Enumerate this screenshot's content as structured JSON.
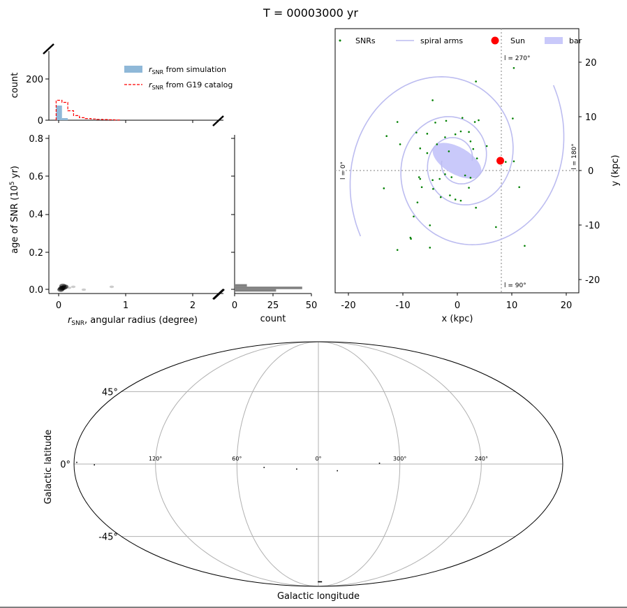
{
  "title": "T = 00003000 yr",
  "hist_top": {
    "ylabel": "count",
    "yticks": [
      0,
      200
    ],
    "ylim": [
      0,
      330
    ],
    "xlim": [
      -0.1,
      2.3
    ],
    "legend": {
      "sim_prefix": "r",
      "sim_sub": "SNR",
      "sim_suffix": " from simulation",
      "cat_prefix": "r",
      "cat_sub": "SNR",
      "cat_suffix": " from G19 catalog"
    },
    "sim_bins": [
      {
        "x0": 0.0,
        "x1": 0.08,
        "count": 70
      },
      {
        "x0": 0.08,
        "x1": 0.16,
        "count": 10
      }
    ],
    "catalog_step": [
      {
        "x0": 0.0,
        "x1": 0.08,
        "count": 95
      },
      {
        "x0": 0.08,
        "x1": 0.16,
        "count": 85
      },
      {
        "x0": 0.16,
        "x1": 0.24,
        "count": 45
      },
      {
        "x0": 0.24,
        "x1": 0.32,
        "count": 22
      },
      {
        "x0": 0.32,
        "x1": 0.4,
        "count": 12
      },
      {
        "x0": 0.4,
        "x1": 0.48,
        "count": 8
      },
      {
        "x0": 0.48,
        "x1": 0.56,
        "count": 6
      },
      {
        "x0": 0.56,
        "x1": 0.64,
        "count": 4
      },
      {
        "x0": 0.64,
        "x1": 0.72,
        "count": 3
      },
      {
        "x0": 0.72,
        "x1": 0.8,
        "count": 2
      },
      {
        "x0": 0.8,
        "x1": 0.88,
        "count": 1
      }
    ],
    "colors": {
      "sim": "#8fb8d8",
      "catalog": "#ff0000"
    }
  },
  "scatter_main": {
    "xlabel_prefix": "r",
    "xlabel_sub": "SNR",
    "xlabel_suffix": ", angular radius (degree)",
    "ylabel_main": "age of SNR (10",
    "ylabel_sup": "5",
    "ylabel_end": " yr)",
    "xticks": [
      0,
      1,
      2
    ],
    "yticks": [
      "0.0",
      "0.2",
      "0.4",
      "0.6",
      "0.8"
    ],
    "xlim": [
      -0.15,
      2.35
    ],
    "ylim": [
      -0.01,
      0.82
    ],
    "density_points": [
      {
        "x": 0.02,
        "y": 0.01
      },
      {
        "x": 0.04,
        "y": 0.02
      },
      {
        "x": 0.05,
        "y": 0.03
      },
      {
        "x": 0.03,
        "y": 0.015
      },
      {
        "x": 0.06,
        "y": 0.02
      },
      {
        "x": 0.08,
        "y": 0.025
      },
      {
        "x": 0.1,
        "y": 0.03
      },
      {
        "x": 0.14,
        "y": 0.02
      },
      {
        "x": 0.2,
        "y": 0.025
      },
      {
        "x": 0.35,
        "y": 0.01
      },
      {
        "x": 0.75,
        "y": 0.025
      }
    ]
  },
  "hist_right": {
    "xlabel": "count",
    "xticks": [
      0,
      25,
      50
    ],
    "xlim": [
      0,
      50
    ],
    "bars": [
      {
        "y0": 0.0,
        "y1": 0.013,
        "count": 27
      },
      {
        "y0": 0.013,
        "y1": 0.026,
        "count": 44
      },
      {
        "y0": 0.026,
        "y1": 0.039,
        "count": 8
      }
    ]
  },
  "galaxy": {
    "xlabel": "x (kpc)",
    "ylabel": "y (kpc)",
    "xticks": [
      -20,
      -10,
      0,
      10,
      20
    ],
    "yticks": [
      20,
      10,
      0,
      -10,
      -20
    ],
    "xlim": [
      -22.5,
      22.5
    ],
    "ylim": [
      -22.5,
      22.5
    ],
    "legend": [
      "SNRs",
      "spiral arms",
      "Sun",
      "bar"
    ],
    "sun": {
      "x": 8.0,
      "y": 0.0
    },
    "bar": {
      "cx": 0.0,
      "cy": 0.0,
      "a": 5.0,
      "b": 2.3,
      "angle_deg": -30
    },
    "lon_labels": {
      "top": "l = 270°",
      "bottom": "l = 90°",
      "left": "l = 0°",
      "right": "l = 180°"
    },
    "colors": {
      "snr": "#008000",
      "arm": "#bcbcf0",
      "sun": "#ff0000",
      "bar": "#c9c9fa"
    },
    "snrs": [
      {
        "x": 3.5,
        "y": 13.5
      },
      {
        "x": 10.5,
        "y": 15.8
      },
      {
        "x": -4.5,
        "y": 10.3
      },
      {
        "x": -11,
        "y": 6.6
      },
      {
        "x": -13,
        "y": 4.2
      },
      {
        "x": -10.5,
        "y": 2.8
      },
      {
        "x": -7.5,
        "y": 4.8
      },
      {
        "x": -5.5,
        "y": 4.6
      },
      {
        "x": -4,
        "y": 6.5
      },
      {
        "x": -2,
        "y": 6.8
      },
      {
        "x": 1,
        "y": 7.3
      },
      {
        "x": 3.3,
        "y": 6.6
      },
      {
        "x": 4,
        "y": 6.9
      },
      {
        "x": 10.3,
        "y": 7.2
      },
      {
        "x": -2.2,
        "y": 4
      },
      {
        "x": -0.3,
        "y": 4.5
      },
      {
        "x": 0.7,
        "y": 5
      },
      {
        "x": 2.2,
        "y": 4.9
      },
      {
        "x": 2.5,
        "y": 3.3
      },
      {
        "x": -1.5,
        "y": 1.6
      },
      {
        "x": -5.5,
        "y": 1.3
      },
      {
        "x": -6.8,
        "y": 2.1
      },
      {
        "x": 3,
        "y": 2
      },
      {
        "x": 3.7,
        "y": 0.4
      },
      {
        "x": -3.7,
        "y": 2.8
      },
      {
        "x": 5.5,
        "y": 2.5
      },
      {
        "x": -7,
        "y": -2.8
      },
      {
        "x": -6.8,
        "y": -3.1
      },
      {
        "x": -4.5,
        "y": -3.3
      },
      {
        "x": -3.2,
        "y": -3.1
      },
      {
        "x": -2.2,
        "y": -2.3
      },
      {
        "x": -1,
        "y": -2.8
      },
      {
        "x": 1.5,
        "y": -2.5
      },
      {
        "x": 2.5,
        "y": -2.9
      },
      {
        "x": -4.4,
        "y": -4.8
      },
      {
        "x": -6.5,
        "y": -4.5
      },
      {
        "x": -7.3,
        "y": -7.1
      },
      {
        "x": -3,
        "y": -6.2
      },
      {
        "x": -1.3,
        "y": -5.9
      },
      {
        "x": -0.3,
        "y": -6.6
      },
      {
        "x": 0.7,
        "y": -6.8
      },
      {
        "x": 2.2,
        "y": -4.6
      },
      {
        "x": -13.5,
        "y": -4.7
      },
      {
        "x": -8,
        "y": -9.5
      },
      {
        "x": -5,
        "y": -11
      },
      {
        "x": -8.5,
        "y": -13.3
      },
      {
        "x": -11,
        "y": -15.2
      },
      {
        "x": -5,
        "y": -14.8
      },
      {
        "x": 3.5,
        "y": -8
      },
      {
        "x": 7.2,
        "y": -11.3
      },
      {
        "x": 11.5,
        "y": -4.5
      },
      {
        "x": 12.5,
        "y": -14.5
      },
      {
        "x": 10.5,
        "y": -0.1
      },
      {
        "x": 9,
        "y": -0.2
      },
      {
        "x": -8.6,
        "y": -13.1
      }
    ]
  },
  "mollweide": {
    "xlabel": "Galactic longitude",
    "ylabel": "Galactic latitude",
    "lat_labels": [
      {
        "lat": 45,
        "text": "45°"
      },
      {
        "lat": 0,
        "text": "0°"
      },
      {
        "lat": -45,
        "text": "-45°"
      }
    ],
    "lon_labels": [
      {
        "lon": 120,
        "text": "120°"
      },
      {
        "lon": 60,
        "text": "60°"
      },
      {
        "lon": 0,
        "text": "0°"
      },
      {
        "lon": 300,
        "text": "300°"
      },
      {
        "lon": 240,
        "text": "240°"
      }
    ],
    "points": [
      {
        "lon": 178,
        "lat": 1.0
      },
      {
        "lon": 165,
        "lat": -0.5
      },
      {
        "lon": 40,
        "lat": -2
      },
      {
        "lon": 16,
        "lat": -3
      },
      {
        "lon": 346,
        "lat": -4
      },
      {
        "lon": 315,
        "lat": 0.5
      },
      {
        "lon": 0,
        "lat": -82.5
      }
    ]
  }
}
